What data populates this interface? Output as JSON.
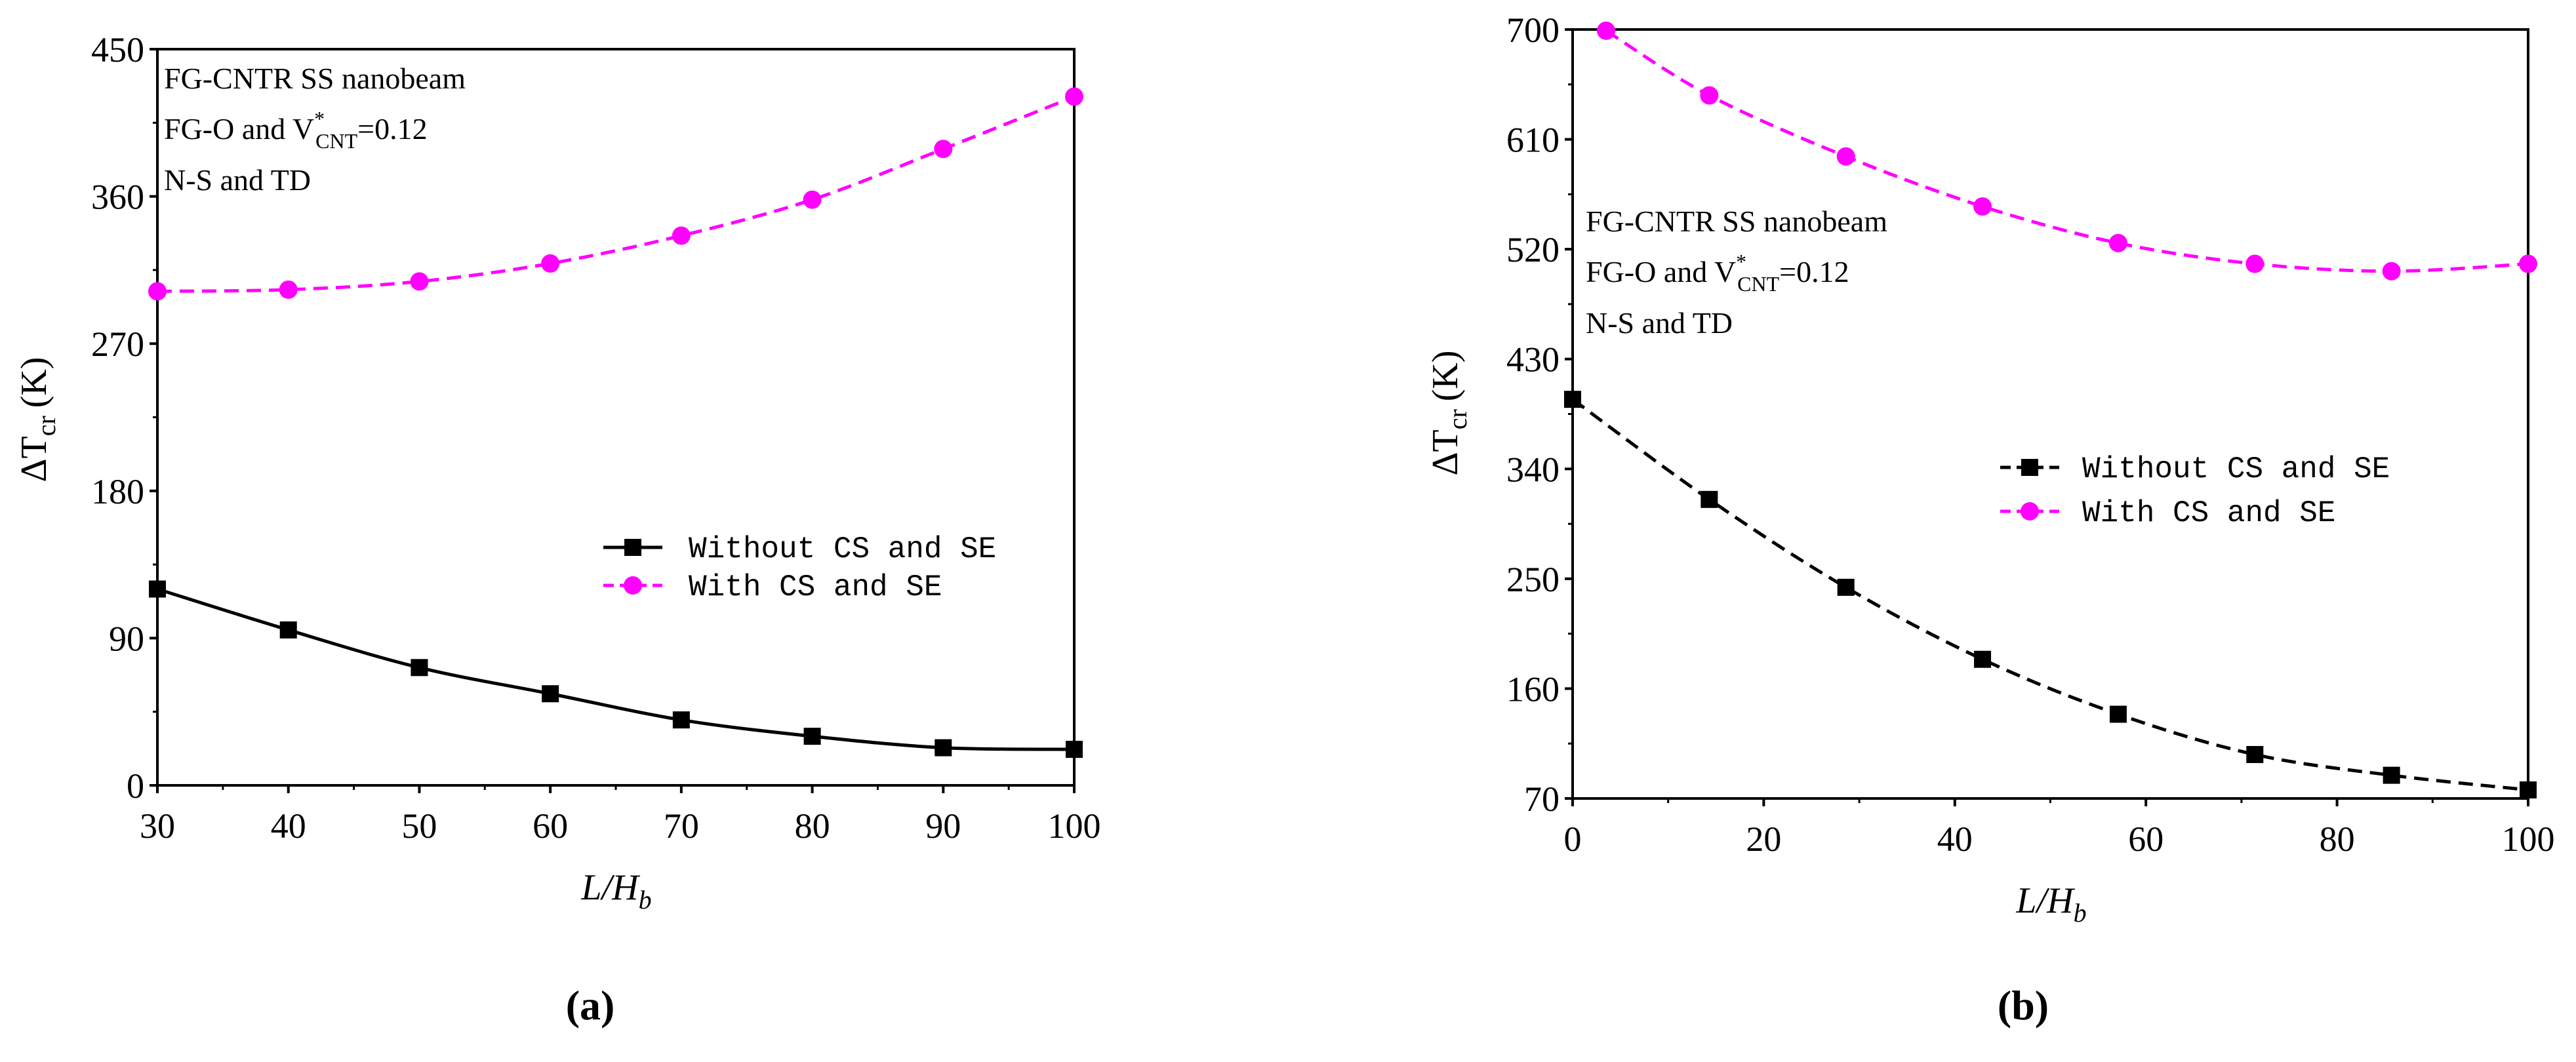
{
  "chart_data": [
    {
      "type": "line",
      "panel_label": "(a)",
      "xlabel": "L/H_b",
      "xlabel_main": "L/H",
      "xlabel_sub": "b",
      "ylabel_prefix": "ΔT",
      "ylabel_sub": "cr",
      "ylabel_unit": "(K)",
      "xlim": [
        30,
        100
      ],
      "ylim": [
        0,
        450
      ],
      "xticks": [
        30,
        40,
        50,
        60,
        70,
        80,
        90,
        100
      ],
      "yticks": [
        0,
        90,
        180,
        270,
        360,
        450
      ],
      "annotations": {
        "line1": "FG-CNTR SS nanobeam",
        "line2_prefix": "FG-O and V",
        "line2_sup": "*",
        "line2_sub": "CNT",
        "line2_suffix": "=0.12",
        "line3": "N-S and TD"
      },
      "legend_position": "center-right",
      "x": [
        30,
        40,
        50,
        60,
        70,
        80,
        90,
        100
      ],
      "series": [
        {
          "name": "Without CS and SE",
          "values": [
            120,
            95,
            72,
            56,
            40,
            30,
            23,
            22
          ],
          "color": "#000000",
          "marker": "square",
          "line_style": "solid"
        },
        {
          "name": "With CS and SE",
          "values": [
            302,
            303,
            308,
            319,
            336,
            358,
            389,
            421
          ],
          "color": "#ff00ff",
          "marker": "circle",
          "line_style": "dashed"
        }
      ]
    },
    {
      "type": "line",
      "panel_label": "(b)",
      "xlabel": "L/H_b",
      "xlabel_main": "L/H",
      "xlabel_sub": "b",
      "ylabel_prefix": "ΔT",
      "ylabel_sub": "cr",
      "ylabel_unit": "(K)",
      "xlim": [
        0,
        100
      ],
      "ylim": [
        70,
        700
      ],
      "xticks": [
        0,
        20,
        40,
        60,
        80,
        100
      ],
      "yticks": [
        70,
        160,
        250,
        340,
        430,
        520,
        610,
        700
      ],
      "annotations": {
        "line1": "FG-CNTR SS nanobeam",
        "line2_prefix": "FG-O and V",
        "line2_sup": "*",
        "line2_sub": "CNT",
        "line2_suffix": "=0.12",
        "line3": "N-S and TD"
      },
      "legend_position": "center-right",
      "series": [
        {
          "name": "Without CS and SE",
          "x": [
            0,
            14.3,
            28.6,
            42.9,
            57.1,
            71.4,
            85.7,
            100
          ],
          "values": [
            397,
            315,
            243,
            184,
            139,
            106,
            89,
            77
          ],
          "color": "#000000",
          "marker": "square",
          "line_style": "dashed"
        },
        {
          "name": "With CS and SE",
          "x": [
            3.5,
            14.3,
            28.6,
            42.9,
            57.1,
            71.4,
            85.7,
            100
          ],
          "values": [
            699,
            646,
            596,
            555,
            525,
            508,
            502,
            508
          ],
          "color": "#ff00ff",
          "marker": "circle",
          "line_style": "dashed"
        }
      ]
    }
  ]
}
